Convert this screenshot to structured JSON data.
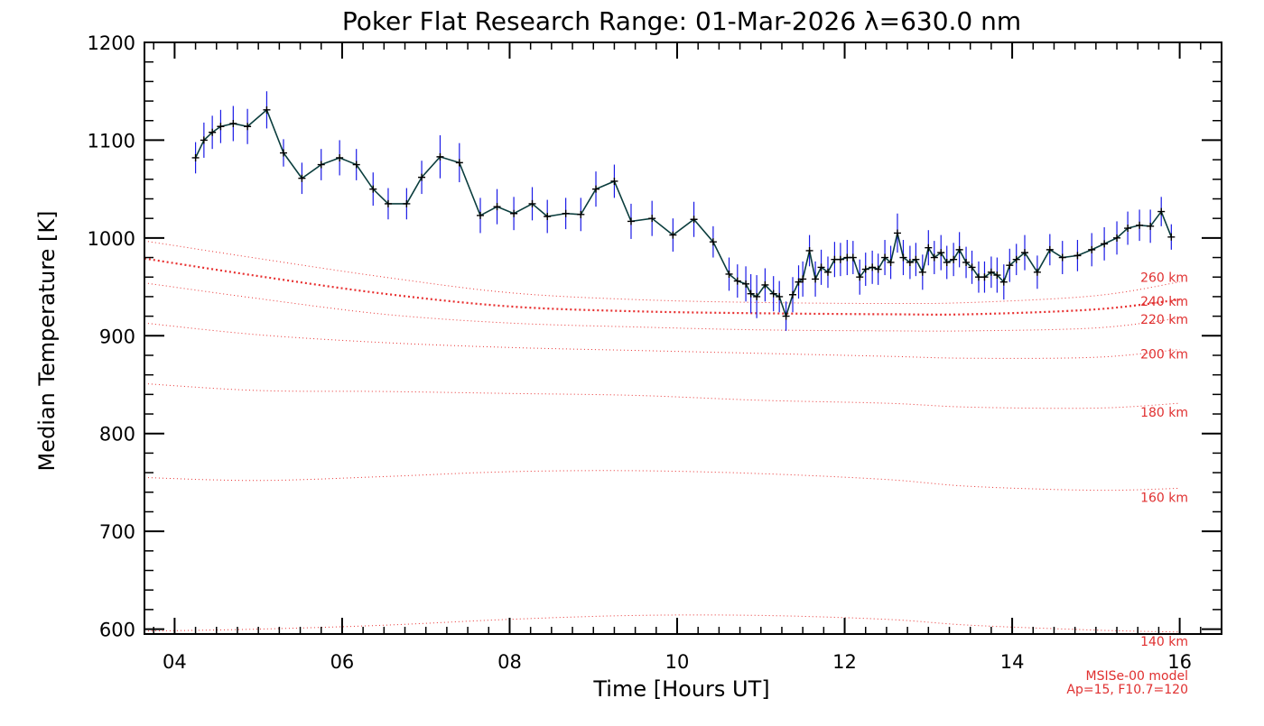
{
  "chart_data": {
    "type": "line",
    "title": "Poker Flat Research Range: 01-Mar-2026 λ=630.0 nm",
    "xlabel": "Time [Hours UT]",
    "ylabel": "Median Temperature [K]",
    "xlim": [
      3.64,
      16.5
    ],
    "ylim": [
      595,
      1200
    ],
    "x_tick_labels": [
      {
        "x": 4,
        "label": "04"
      },
      {
        "x": 6,
        "label": "06"
      },
      {
        "x": 8,
        "label": "08"
      },
      {
        "x": 10,
        "label": "10"
      },
      {
        "x": 12,
        "label": "12"
      },
      {
        "x": 14,
        "label": "14"
      },
      {
        "x": 16,
        "label": "16"
      }
    ],
    "y_ticks": [
      600,
      700,
      800,
      900,
      1000,
      1100,
      1200
    ],
    "grid": false,
    "colors": {
      "data_line": "#0a3d3d",
      "error_bars": "#1a1ae6",
      "markers": "#000000",
      "model_curves": "#e83030",
      "model_text": "#e03030"
    },
    "series": [
      {
        "kind": "measured",
        "x": [
          4.25,
          4.35,
          4.45,
          4.55,
          4.7,
          4.87,
          5.1,
          5.3,
          5.52,
          5.75,
          5.97,
          6.17,
          6.37,
          6.55,
          6.77,
          6.95,
          7.17,
          7.4,
          7.65,
          7.85,
          8.05,
          8.27,
          8.45,
          8.67,
          8.85,
          9.03,
          9.25,
          9.45,
          9.7,
          9.95,
          10.2,
          10.43,
          10.62,
          10.72,
          10.82,
          10.88,
          10.95,
          11.05,
          11.15,
          11.22,
          11.3,
          11.38,
          11.45,
          11.5,
          11.58,
          11.65,
          11.72,
          11.8,
          11.88,
          11.95,
          12.03,
          12.1,
          12.18,
          12.25,
          12.33,
          12.4,
          12.48,
          12.55,
          12.63,
          12.7,
          12.78,
          12.85,
          12.93,
          13.0,
          13.07,
          13.15,
          13.22,
          13.3,
          13.37,
          13.45,
          13.52,
          13.6,
          13.67,
          13.75,
          13.82,
          13.9,
          13.97,
          14.05,
          14.15,
          14.3,
          14.45,
          14.6,
          14.78,
          14.95,
          15.1,
          15.25,
          15.38,
          15.52,
          15.65,
          15.78,
          15.9
        ],
        "y": [
          1082,
          1100,
          1108,
          1114,
          1117,
          1114,
          1131,
          1087,
          1061,
          1075,
          1082,
          1075,
          1050,
          1035,
          1035,
          1062,
          1083,
          1077,
          1023,
          1032,
          1025,
          1035,
          1022,
          1025,
          1024,
          1050,
          1058,
          1017,
          1020,
          1003,
          1019,
          996,
          963,
          956,
          953,
          943,
          940,
          952,
          943,
          940,
          920,
          942,
          955,
          958,
          987,
          958,
          970,
          965,
          978,
          978,
          980,
          980,
          960,
          968,
          970,
          968,
          980,
          975,
          1005,
          980,
          975,
          978,
          965,
          990,
          980,
          985,
          975,
          978,
          988,
          975,
          970,
          960,
          960,
          965,
          962,
          955,
          972,
          978,
          985,
          965,
          988,
          980,
          982,
          988,
          994,
          1000,
          1010,
          1013,
          1012,
          1027,
          1001
        ],
        "err": [
          16,
          18,
          17,
          17,
          18,
          18,
          19,
          14,
          16,
          16,
          18,
          16,
          17,
          16,
          16,
          17,
          22,
          20,
          18,
          18,
          17,
          17,
          17,
          16,
          17,
          18,
          17,
          18,
          18,
          17,
          18,
          16,
          17,
          17,
          18,
          20,
          22,
          17,
          18,
          16,
          15,
          18,
          17,
          18,
          16,
          18,
          18,
          16,
          18,
          17,
          18,
          17,
          18,
          17,
          17,
          16,
          18,
          17,
          20,
          18,
          17,
          17,
          18,
          18,
          17,
          18,
          17,
          17,
          18,
          16,
          17,
          16,
          16,
          16,
          18,
          18,
          17,
          16,
          18,
          17,
          16,
          17,
          16,
          17,
          17,
          17,
          17,
          16,
          17,
          15,
          13
        ]
      }
    ],
    "model_curves": [
      {
        "label": "140 km",
        "y_values": [
          598,
          600,
          604,
          610,
          614,
          614,
          610,
          604,
          599,
          597
        ]
      },
      {
        "label": "160 km",
        "y_values": [
          755,
          752,
          756,
          761,
          762,
          759,
          753,
          746,
          742,
          744
        ]
      },
      {
        "label": "180 km",
        "y_values": [
          851,
          844,
          843,
          841,
          839,
          834,
          831,
          827,
          826,
          831
        ]
      },
      {
        "label": "200 km",
        "y_values": [
          913,
          901,
          893,
          888,
          885,
          882,
          879,
          877,
          878,
          886
        ]
      },
      {
        "label": "220 km",
        "y_values": [
          954,
          938,
          922,
          913,
          909,
          906,
          905,
          905,
          908,
          918
        ]
      },
      {
        "label": "240 km",
        "y_values": [
          979,
          961,
          943,
          930,
          925,
          923,
          922,
          922,
          927,
          937
        ]
      },
      {
        "label": "260 km",
        "y_values": [
          997,
          979,
          960,
          944,
          937,
          934,
          933,
          934,
          941,
          955
        ]
      }
    ],
    "model_x": [
      3.64,
      5,
      6.5,
      8,
      9.5,
      11,
      12.5,
      13.5,
      15,
      16
    ],
    "model_note": [
      "MSISe-00 model",
      "Ap=15, F10.7=120"
    ]
  }
}
